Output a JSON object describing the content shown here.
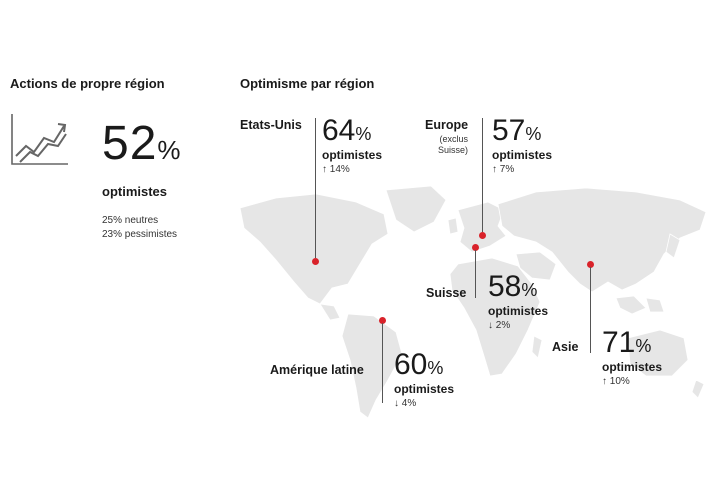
{
  "left": {
    "title": "Actions de propre région",
    "icon": "trend-up-chart-icon",
    "value": "52",
    "unit": "%",
    "label": "optimistes",
    "neutral": "25% neutres",
    "pessimist": "23% pessimistes"
  },
  "right": {
    "title": "Optimisme par région",
    "regions": {
      "us": {
        "name": "Etats-Unis",
        "value": "64",
        "unit": "%",
        "label": "optimistes",
        "delta": "↑ 14%"
      },
      "europe": {
        "name": "Europe",
        "sub1": "(exclus",
        "sub2": "Suisse)",
        "value": "57",
        "unit": "%",
        "label": "optimistes",
        "delta": "↑ 7%"
      },
      "swiss": {
        "name": "Suisse",
        "value": "58",
        "unit": "%",
        "label": "optimistes",
        "delta": "↓ 2%"
      },
      "latam": {
        "name": "Amérique latine",
        "value": "60",
        "unit": "%",
        "label": "optimistes",
        "delta": "↓ 4%"
      },
      "asia": {
        "name": "Asie",
        "value": "71",
        "unit": "%",
        "label": "optimistes",
        "delta": "↑ 10%"
      }
    }
  },
  "colors": {
    "marker": "#d9222a",
    "map": "#e6e6e6",
    "text": "#1a1a1a"
  }
}
